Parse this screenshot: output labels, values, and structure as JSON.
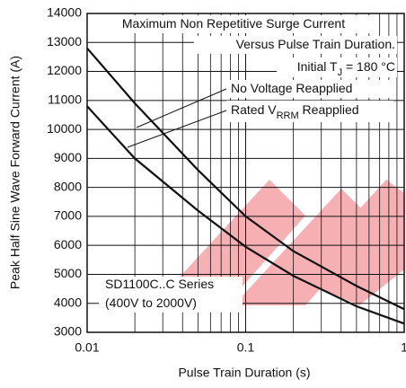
{
  "chart_data": {
    "type": "line",
    "xscale": "log",
    "x_label": "Pulse Train Duration (s)",
    "y_label": "Peak Half Sine Wave Forward Current (A)",
    "annotations": [
      {
        "parts": [
          "Maximum Non Repetitive Surge Current"
        ]
      },
      {
        "parts": [
          "Versus Pulse Train Duration."
        ]
      },
      {
        "parts": [
          "Initial T",
          "J",
          " = 180 °C"
        ]
      },
      {
        "parts": [
          "SD1100C..C Series"
        ]
      },
      {
        "parts": [
          "(400V to 2000V)"
        ]
      }
    ],
    "x": [
      0.01,
      0.02,
      0.05,
      0.1,
      0.2,
      0.5,
      1
    ],
    "series": [
      {
        "name": [
          "No Voltage Reapplied"
        ],
        "color": "#111111",
        "values": [
          12800,
          10900,
          8600,
          7000,
          5800,
          4600,
          3800
        ]
      },
      {
        "name": [
          "Rated V",
          "RRM",
          " Reapplied"
        ],
        "color": "#111111",
        "values": [
          10800,
          9000,
          7200,
          5950,
          4950,
          3900,
          3300
        ]
      }
    ],
    "xlim": [
      0.01,
      1
    ],
    "xticks": [
      0.01,
      0.1,
      1
    ],
    "xminorticks": [
      0.02,
      0.03,
      0.04,
      0.05,
      0.06,
      0.07,
      0.08,
      0.09,
      0.2,
      0.3,
      0.4,
      0.5,
      0.6,
      0.7,
      0.8,
      0.9
    ],
    "ylim": [
      3000,
      14000
    ],
    "yticks": [
      3000,
      4000,
      5000,
      6000,
      7000,
      8000,
      9000,
      10000,
      11000,
      12000,
      13000,
      14000
    ],
    "grid": true
  }
}
